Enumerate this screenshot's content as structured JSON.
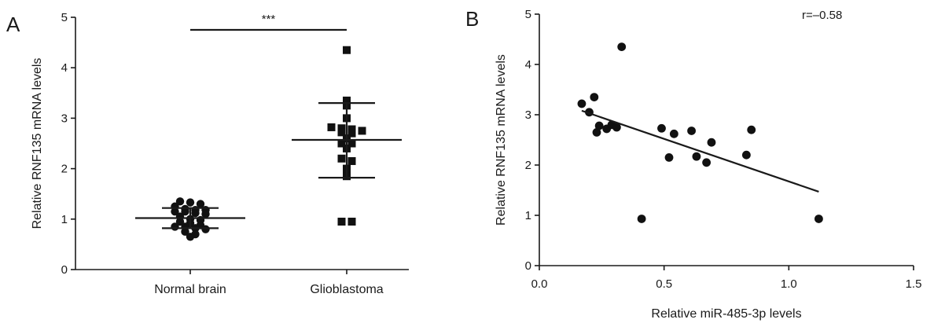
{
  "chart_data": [
    {
      "panel": "A",
      "type": "scatter",
      "ylabel": "Relative RNF135 mRNA levels",
      "ylim": [
        0,
        5
      ],
      "yticks": [
        0,
        1,
        2,
        3,
        4,
        5
      ],
      "categories": [
        "Normal brain",
        "Glioblastoma"
      ],
      "significance": "***",
      "groups": [
        {
          "category": "Normal brain",
          "marker": "circle",
          "mean": 1.02,
          "sd_low": 0.82,
          "sd_high": 1.22,
          "values": [
            1.35,
            1.3,
            1.33,
            1.25,
            1.18,
            1.12,
            1.15,
            1.2,
            1.1,
            1.18,
            1.15,
            1.0,
            0.95,
            1.05,
            0.98,
            0.92,
            0.88,
            0.85,
            0.82,
            0.8,
            0.85,
            0.75,
            0.7,
            0.65
          ]
        },
        {
          "category": "Glioblastoma",
          "marker": "square",
          "mean": 2.57,
          "sd_low": 1.82,
          "sd_high": 3.3,
          "values": [
            4.35,
            3.35,
            3.25,
            3.0,
            2.82,
            2.8,
            2.78,
            2.75,
            2.72,
            2.7,
            2.6,
            2.5,
            2.5,
            2.4,
            2.2,
            2.15,
            2.0,
            1.85,
            0.95,
            0.95
          ]
        }
      ]
    },
    {
      "panel": "B",
      "type": "scatter",
      "xlabel": "Relative miR-485-3p levels",
      "ylabel": "Relative RNF135 mRNA levels",
      "xlim": [
        0,
        1.5
      ],
      "ylim": [
        0,
        5
      ],
      "xticks": [
        "0.0",
        "0.5",
        "1.0",
        "1.5"
      ],
      "yticks": [
        0,
        1,
        2,
        3,
        4,
        5
      ],
      "annotation": "r=–0.58",
      "points": [
        {
          "x": 0.17,
          "y": 3.22
        },
        {
          "x": 0.2,
          "y": 3.05
        },
        {
          "x": 0.22,
          "y": 3.35
        },
        {
          "x": 0.23,
          "y": 2.65
        },
        {
          "x": 0.24,
          "y": 2.78
        },
        {
          "x": 0.27,
          "y": 2.72
        },
        {
          "x": 0.29,
          "y": 2.8
        },
        {
          "x": 0.31,
          "y": 2.75
        },
        {
          "x": 0.33,
          "y": 4.35
        },
        {
          "x": 0.41,
          "y": 0.93
        },
        {
          "x": 0.49,
          "y": 2.73
        },
        {
          "x": 0.52,
          "y": 2.15
        },
        {
          "x": 0.54,
          "y": 2.62
        },
        {
          "x": 0.61,
          "y": 2.68
        },
        {
          "x": 0.63,
          "y": 2.17
        },
        {
          "x": 0.67,
          "y": 2.05
        },
        {
          "x": 0.69,
          "y": 2.45
        },
        {
          "x": 0.83,
          "y": 2.2
        },
        {
          "x": 0.85,
          "y": 2.7
        },
        {
          "x": 1.12,
          "y": 0.93
        }
      ],
      "fit_line": {
        "x": [
          0.17,
          1.12
        ],
        "y": [
          3.08,
          1.47
        ]
      }
    }
  ]
}
